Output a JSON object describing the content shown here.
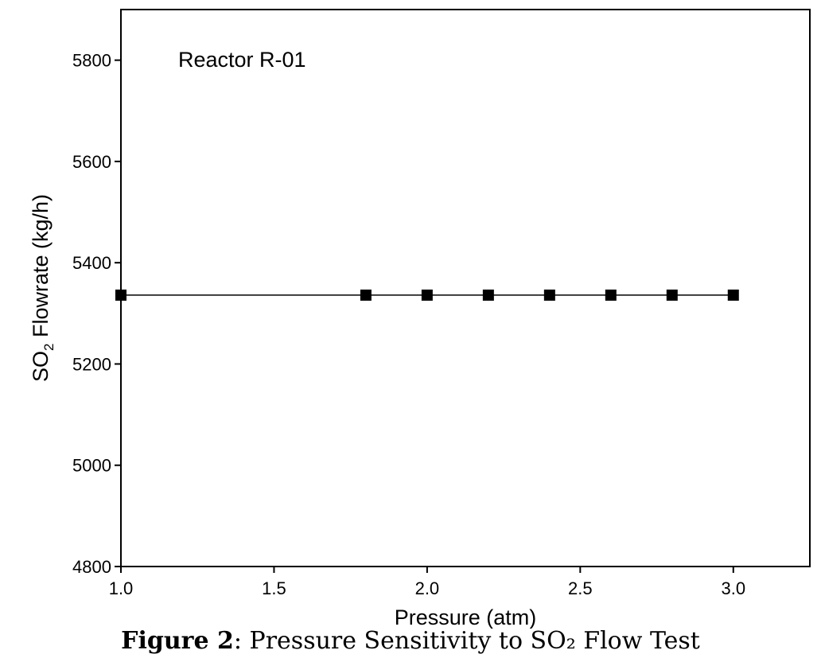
{
  "chart_data": {
    "type": "line",
    "annotation": "Reactor R-01",
    "xlabel": "Pressure (atm)",
    "ylabel_prefix": "SO",
    "ylabel_sub": "2",
    "ylabel_suffix": " Flowrate (kg/h)",
    "xlim": [
      1.0,
      3.25
    ],
    "ylim": [
      4800,
      5900
    ],
    "xticks": [
      1.0,
      1.5,
      2.0,
      2.5,
      3.0
    ],
    "xtick_labels": [
      "1.0",
      "1.5",
      "2.0",
      "2.5",
      "3.0"
    ],
    "yticks": [
      4800,
      5000,
      5200,
      5400,
      5600,
      5800
    ],
    "ytick_labels": [
      "4800",
      "5000",
      "5200",
      "5400",
      "5600",
      "5800"
    ],
    "series": [
      {
        "name": "SO2 Flowrate",
        "marker": "square",
        "color": "#000000",
        "x": [
          1.0,
          1.8,
          2.0,
          2.2,
          2.4,
          2.6,
          2.8,
          3.0
        ],
        "y": [
          5336,
          5336,
          5336,
          5336,
          5336,
          5336,
          5336,
          5336
        ]
      }
    ]
  },
  "caption": {
    "label": "Figure 2",
    "text": ": Pressure Sensitivity to SO₂ Flow Test"
  }
}
